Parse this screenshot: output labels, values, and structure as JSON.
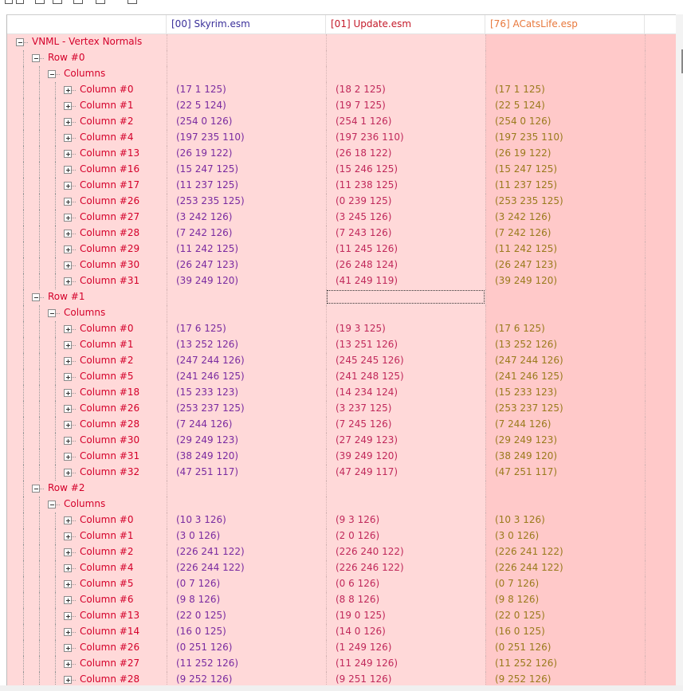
{
  "header": {
    "files": [
      "[00] Skyrim.esm",
      "[01] Update.esm",
      "[76] ACatsLife.esp"
    ]
  },
  "tree": {
    "label": "VNML - Vertex Normals",
    "children": [
      {
        "label": "Row #0",
        "children": [
          {
            "label": "Columns",
            "children": [
              {
                "label": "Column #0",
                "values": [
                  "(17 1 125)",
                  "(18 2 125)",
                  "(17 1 125)"
                ]
              },
              {
                "label": "Column #1",
                "values": [
                  "(22 5 124)",
                  "(19 7 125)",
                  "(22 5 124)"
                ]
              },
              {
                "label": "Column #2",
                "values": [
                  "(254 0 126)",
                  "(254 1 126)",
                  "(254 0 126)"
                ]
              },
              {
                "label": "Column #4",
                "values": [
                  "(197 235 110)",
                  "(197 236 110)",
                  "(197 235 110)"
                ]
              },
              {
                "label": "Column #13",
                "values": [
                  "(26 19 122)",
                  "(26 18 122)",
                  "(26 19 122)"
                ]
              },
              {
                "label": "Column #16",
                "values": [
                  "(15 247 125)",
                  "(15 246 125)",
                  "(15 247 125)"
                ]
              },
              {
                "label": "Column #17",
                "values": [
                  "(11 237 125)",
                  "(11 238 125)",
                  "(11 237 125)"
                ]
              },
              {
                "label": "Column #26",
                "values": [
                  "(253 235 125)",
                  "(0 239 125)",
                  "(253 235 125)"
                ]
              },
              {
                "label": "Column #27",
                "values": [
                  "(3 242 126)",
                  "(3 245 126)",
                  "(3 242 126)"
                ]
              },
              {
                "label": "Column #28",
                "values": [
                  "(7 242 126)",
                  "(7 243 126)",
                  "(7 242 126)"
                ]
              },
              {
                "label": "Column #29",
                "values": [
                  "(11 242 125)",
                  "(11 245 126)",
                  "(11 242 125)"
                ]
              },
              {
                "label": "Column #30",
                "values": [
                  "(26 247 123)",
                  "(26 248 124)",
                  "(26 247 123)"
                ]
              },
              {
                "label": "Column #31",
                "values": [
                  "(39 249 120)",
                  "(41 249 119)",
                  "(39 249 120)"
                ]
              }
            ]
          }
        ]
      },
      {
        "label": "Row #1",
        "children": [
          {
            "label": "Columns",
            "children": [
              {
                "label": "Column #0",
                "values": [
                  "(17 6 125)",
                  "(19 3 125)",
                  "(17 6 125)"
                ]
              },
              {
                "label": "Column #1",
                "values": [
                  "(13 252 126)",
                  "(13 251 126)",
                  "(13 252 126)"
                ]
              },
              {
                "label": "Column #2",
                "values": [
                  "(247 244 126)",
                  "(245 245 126)",
                  "(247 244 126)"
                ]
              },
              {
                "label": "Column #5",
                "values": [
                  "(241 246 125)",
                  "(241 248 125)",
                  "(241 246 125)"
                ]
              },
              {
                "label": "Column #18",
                "values": [
                  "(15 233 123)",
                  "(14 234 124)",
                  "(15 233 123)"
                ]
              },
              {
                "label": "Column #26",
                "values": [
                  "(253 237 125)",
                  "(3 237 125)",
                  "(253 237 125)"
                ]
              },
              {
                "label": "Column #28",
                "values": [
                  "(7 244 126)",
                  "(7 245 126)",
                  "(7 244 126)"
                ]
              },
              {
                "label": "Column #30",
                "values": [
                  "(29 249 123)",
                  "(27 249 123)",
                  "(29 249 123)"
                ]
              },
              {
                "label": "Column #31",
                "values": [
                  "(38 249 120)",
                  "(39 249 120)",
                  "(38 249 120)"
                ]
              },
              {
                "label": "Column #32",
                "values": [
                  "(47 251 117)",
                  "(47 249 117)",
                  "(47 251 117)"
                ]
              }
            ]
          }
        ]
      },
      {
        "label": "Row #2",
        "children": [
          {
            "label": "Columns",
            "children": [
              {
                "label": "Column #0",
                "values": [
                  "(10 3 126)",
                  "(9 3 126)",
                  "(10 3 126)"
                ]
              },
              {
                "label": "Column #1",
                "values": [
                  "(3 0 126)",
                  "(2 0 126)",
                  "(3 0 126)"
                ]
              },
              {
                "label": "Column #2",
                "values": [
                  "(226 241 122)",
                  "(226 240 122)",
                  "(226 241 122)"
                ]
              },
              {
                "label": "Column #4",
                "values": [
                  "(226 244 122)",
                  "(226 246 122)",
                  "(226 244 122)"
                ]
              },
              {
                "label": "Column #5",
                "values": [
                  "(0 7 126)",
                  "(0 6 126)",
                  "(0 7 126)"
                ]
              },
              {
                "label": "Column #6",
                "values": [
                  "(9 8 126)",
                  "(8 8 126)",
                  "(9 8 126)"
                ]
              },
              {
                "label": "Column #13",
                "values": [
                  "(22 0 125)",
                  "(19 0 125)",
                  "(22 0 125)"
                ]
              },
              {
                "label": "Column #14",
                "values": [
                  "(16 0 125)",
                  "(14 0 126)",
                  "(16 0 125)"
                ]
              },
              {
                "label": "Column #26",
                "values": [
                  "(0 251 126)",
                  "(1 249 126)",
                  "(0 251 126)"
                ]
              },
              {
                "label": "Column #27",
                "values": [
                  "(11 252 126)",
                  "(11 249 126)",
                  "(11 252 126)"
                ]
              },
              {
                "label": "Column #28",
                "values": [
                  "(9 252 126)",
                  "(9 251 126)",
                  "(9 252 126)"
                ]
              }
            ]
          }
        ]
      }
    ]
  }
}
